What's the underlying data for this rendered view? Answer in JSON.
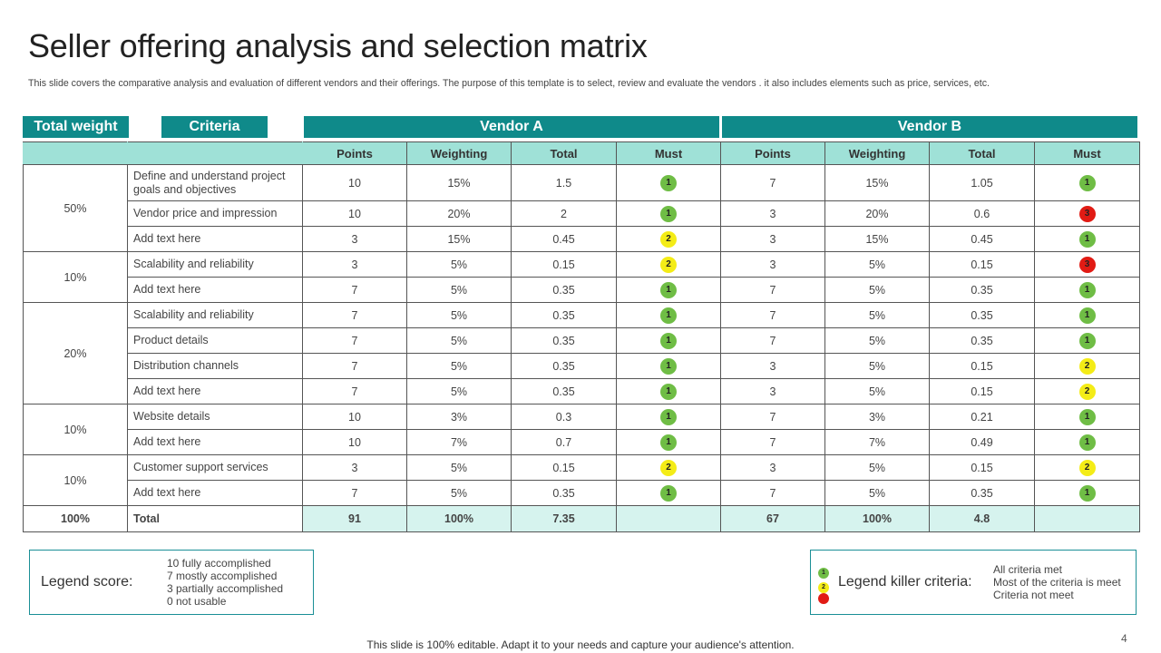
{
  "title": "Seller offering analysis and selection matrix",
  "subtitle": "This slide covers the comparative analysis and evaluation of different vendors and their offerings. The purpose of this template is to select, review and evaluate the vendors . it also includes elements such as price, services, etc.",
  "headers": {
    "total_weight": "Total weight",
    "criteria": "Criteria",
    "vendor_a": "Vendor A",
    "vendor_b": "Vendor B"
  },
  "columns": [
    "Points",
    "Weighting",
    "Total",
    "Must",
    "Points",
    "Weighting",
    "Total",
    "Must"
  ],
  "groups": [
    {
      "weight": "50%",
      "rows": [
        {
          "criteria": "Define and understand project goals and objectives",
          "a": [
            "10",
            "15%",
            "1.5",
            "1"
          ],
          "b": [
            "7",
            "15%",
            "1.05",
            "1"
          ]
        },
        {
          "criteria": "Vendor price and  impression",
          "a": [
            "10",
            "20%",
            "2",
            "1"
          ],
          "b": [
            "3",
            "20%",
            "0.6",
            "3"
          ]
        },
        {
          "criteria": "Add text here",
          "a": [
            "3",
            "15%",
            "0.45",
            "2"
          ],
          "b": [
            "3",
            "15%",
            "0.45",
            "1"
          ]
        }
      ]
    },
    {
      "weight": "10%",
      "rows": [
        {
          "criteria": "Scalability and reliability",
          "a": [
            "3",
            "5%",
            "0.15",
            "2"
          ],
          "b": [
            "3",
            "5%",
            "0.15",
            "3"
          ]
        },
        {
          "criteria": "Add text here",
          "a": [
            "7",
            "5%",
            "0.35",
            "1"
          ],
          "b": [
            "7",
            "5%",
            "0.35",
            "1"
          ]
        }
      ]
    },
    {
      "weight": "20%",
      "rows": [
        {
          "criteria": "Scalability and reliability",
          "a": [
            "7",
            "5%",
            "0.35",
            "1"
          ],
          "b": [
            "7",
            "5%",
            "0.35",
            "1"
          ]
        },
        {
          "criteria": "Product details",
          "a": [
            "7",
            "5%",
            "0.35",
            "1"
          ],
          "b": [
            "7",
            "5%",
            "0.35",
            "1"
          ]
        },
        {
          "criteria": "Distribution channels",
          "a": [
            "7",
            "5%",
            "0.35",
            "1"
          ],
          "b": [
            "3",
            "5%",
            "0.15",
            "2"
          ]
        },
        {
          "criteria": "Add text here",
          "a": [
            "7",
            "5%",
            "0.35",
            "1"
          ],
          "b": [
            "3",
            "5%",
            "0.15",
            "2"
          ]
        }
      ]
    },
    {
      "weight": "10%",
      "rows": [
        {
          "criteria": "Website details",
          "a": [
            "10",
            "3%",
            "0.3",
            "1"
          ],
          "b": [
            "7",
            "3%",
            "0.21",
            "1"
          ]
        },
        {
          "criteria": "Add text here",
          "a": [
            "10",
            "7%",
            "0.7",
            "1"
          ],
          "b": [
            "7",
            "7%",
            "0.49",
            "1"
          ]
        }
      ]
    },
    {
      "weight": "10%",
      "rows": [
        {
          "criteria": "Customer support services",
          "a": [
            "3",
            "5%",
            "0.15",
            "2"
          ],
          "b": [
            "3",
            "5%",
            "0.15",
            "2"
          ]
        },
        {
          "criteria": "Add text here",
          "a": [
            "7",
            "5%",
            "0.35",
            "1"
          ],
          "b": [
            "7",
            "5%",
            "0.35",
            "1"
          ]
        }
      ]
    }
  ],
  "total_row": {
    "weight": "100%",
    "label": "Total",
    "a": [
      "91",
      "100%",
      "7.35",
      ""
    ],
    "b": [
      "67",
      "100%",
      "4.8",
      ""
    ]
  },
  "legend_score": {
    "label": "Legend score:",
    "items": [
      "10 fully accomplished",
      "7 mostly accomplished",
      "3 partially accomplished",
      "0 not usable"
    ]
  },
  "legend_killer": {
    "label": "Legend killer criteria:",
    "items": [
      {
        "badge": "1",
        "text": "All criteria met"
      },
      {
        "badge": "2",
        "text": "Most of the criteria is meet"
      },
      {
        "badge": "",
        "text": "Criteria not meet"
      }
    ]
  },
  "footer": "This slide is 100% editable. Adapt it to your needs and capture your audience's attention.",
  "page_number": "4",
  "colors": {
    "teal": "#0f8a8a",
    "mint": "#9fe1d7",
    "green": "#6fbd45",
    "yellow": "#f4ec17",
    "red": "#e11b14"
  }
}
